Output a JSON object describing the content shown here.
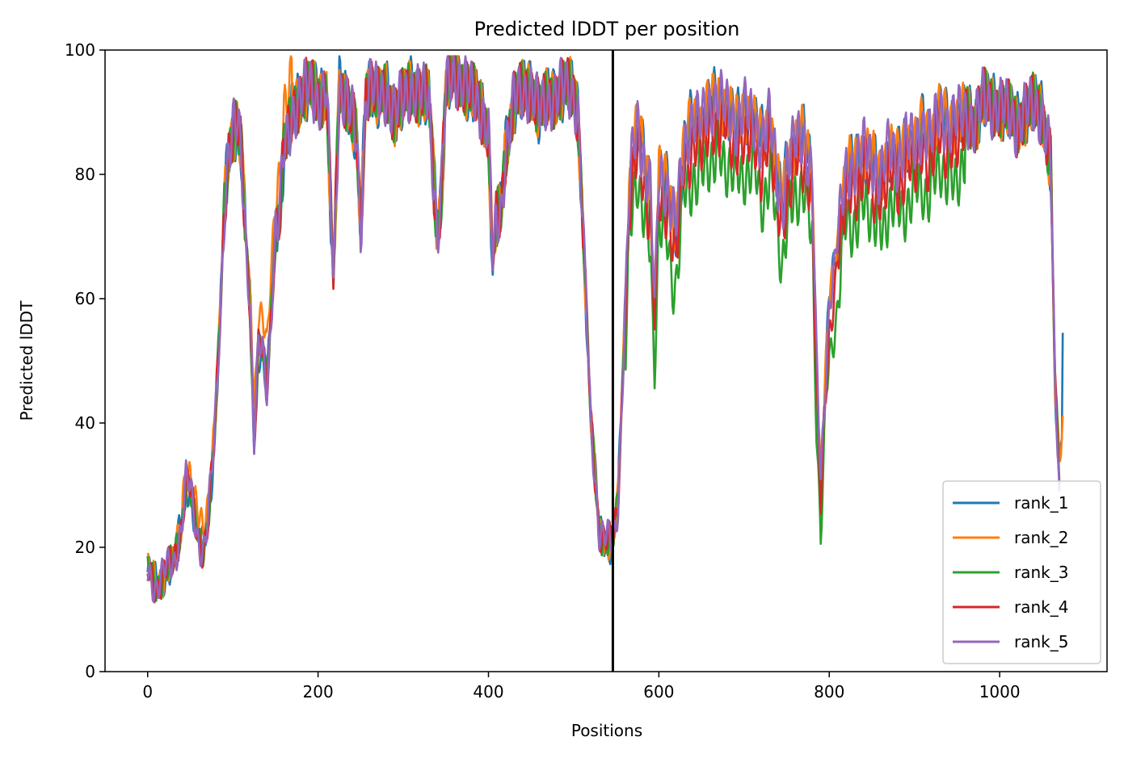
{
  "chart_data": {
    "type": "line",
    "title": "Predicted lDDT per position",
    "xlabel": "Positions",
    "ylabel": "Predicted lDDT",
    "xlim": [
      -50,
      1126
    ],
    "ylim": [
      0,
      100
    ],
    "xticks": [
      0,
      200,
      400,
      600,
      800,
      1000
    ],
    "yticks": [
      0,
      20,
      40,
      60,
      80,
      100
    ],
    "grid": false,
    "legend_position": "lower-right",
    "vline_x": 546,
    "vline_color": "#000000",
    "anchors_x": [
      0,
      10,
      20,
      30,
      40,
      45,
      50,
      55,
      60,
      65,
      70,
      78,
      85,
      90,
      95,
      100,
      105,
      110,
      115,
      120,
      125,
      130,
      135,
      140,
      145,
      150,
      155,
      160,
      165,
      170,
      180,
      190,
      200,
      210,
      218,
      225,
      235,
      245,
      250,
      256,
      262,
      270,
      280,
      290,
      300,
      310,
      320,
      330,
      340,
      345,
      350,
      360,
      370,
      380,
      390,
      400,
      405,
      409,
      415,
      420,
      430,
      440,
      450,
      460,
      470,
      480,
      490,
      500,
      505,
      510,
      520,
      530,
      540,
      546,
      552,
      560,
      565,
      570,
      575,
      580,
      590,
      595,
      600,
      610,
      620,
      630,
      640,
      650,
      660,
      670,
      680,
      690,
      700,
      710,
      720,
      730,
      740,
      745,
      750,
      760,
      770,
      780,
      785,
      790,
      795,
      800,
      810,
      820,
      830,
      840,
      850,
      860,
      870,
      880,
      890,
      900,
      910,
      920,
      930,
      940,
      950,
      960,
      970,
      980,
      990,
      1000,
      1010,
      1020,
      1030,
      1040,
      1050,
      1060,
      1065,
      1070,
      1074
    ],
    "base_y": [
      16,
      14,
      16,
      17,
      24,
      31,
      29,
      24,
      21,
      20,
      24,
      36,
      56,
      75,
      84,
      87,
      88,
      83,
      70,
      60,
      37,
      52,
      51,
      45,
      58,
      71,
      74,
      84,
      86,
      90,
      93,
      94,
      92,
      94,
      62,
      94,
      92,
      86,
      70,
      93,
      95,
      92,
      93,
      90,
      92,
      94,
      93,
      92,
      70,
      78,
      94,
      96,
      95,
      93,
      91,
      87,
      65,
      72,
      74,
      84,
      92,
      93,
      94,
      90,
      92,
      93,
      94,
      93,
      90,
      75,
      40,
      23,
      21,
      20,
      27,
      57,
      77,
      84,
      88,
      84,
      78,
      58,
      80,
      78,
      72,
      84,
      90,
      88,
      91,
      93,
      90,
      88,
      91,
      88,
      86,
      89,
      78,
      75,
      82,
      85,
      86,
      80,
      50,
      30,
      45,
      60,
      70,
      80,
      82,
      84,
      82,
      80,
      84,
      82,
      86,
      84,
      88,
      86,
      90,
      88,
      89,
      90,
      88,
      92,
      91,
      91,
      90,
      88,
      90,
      91,
      90,
      82,
      45,
      32,
      40
    ],
    "series": [
      {
        "name": "rank_1",
        "color": "#1f77b4",
        "x_end": 1074,
        "end_value": 54.5
      },
      {
        "name": "rank_2",
        "color": "#ff7f0e",
        "x_end": 1074,
        "end_value": 41.2
      },
      {
        "name": "rank_3",
        "color": "#2ca02c",
        "x_end": 1070,
        "end_value": 30
      },
      {
        "name": "rank_4",
        "color": "#d62728",
        "x_end": 1070,
        "end_value": 31
      },
      {
        "name": "rank_5",
        "color": "#9467bd",
        "x_end": 1070,
        "end_value": 29
      }
    ]
  }
}
